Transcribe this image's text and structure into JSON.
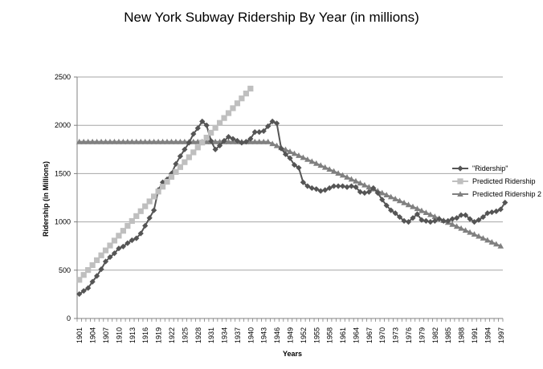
{
  "chart_data": {
    "type": "line",
    "title": "New York Subway Ridership By Year (in millions)",
    "xlabel": "Years",
    "ylabel": "Ridership (in Millions)",
    "ylim": [
      0,
      2500
    ],
    "yticks": [
      "0",
      "500",
      "1000",
      "1500",
      "2000",
      "2500"
    ],
    "xtick_labels": [
      "1901",
      "1904",
      "1907",
      "1910",
      "1913",
      "1916",
      "1919",
      "1922",
      "1925",
      "1928",
      "1931",
      "1934",
      "1937",
      "1940",
      "1943",
      "1946",
      "1949",
      "1952",
      "1955",
      "1958",
      "1961",
      "1964",
      "1967",
      "1970",
      "1973",
      "1976",
      "1979",
      "1982",
      "1985",
      "1988",
      "1991",
      "1994",
      "1997"
    ],
    "grid": true,
    "legend_position": "right",
    "colors": {
      "ridership": "#555555",
      "predicted": "#bfbfbf",
      "predicted2": "#808080",
      "grid": "#a6a6a6",
      "axis": "#808080"
    },
    "series": [
      {
        "name": "\"Ridership\"",
        "key": "ridership",
        "marker": "diamond",
        "x_start": 1901,
        "values": [
          253,
          285,
          315,
          380,
          440,
          510,
          590,
          635,
          675,
          725,
          745,
          780,
          810,
          830,
          880,
          960,
          1040,
          1120,
          1330,
          1410,
          1440,
          1500,
          1600,
          1680,
          1750,
          1820,
          1910,
          1970,
          2040,
          2000,
          1840,
          1750,
          1790,
          1840,
          1880,
          1860,
          1840,
          1820,
          1830,
          1860,
          1930,
          1930,
          1940,
          1990,
          2040,
          2020,
          1760,
          1700,
          1660,
          1590,
          1560,
          1410,
          1370,
          1350,
          1340,
          1320,
          1330,
          1350,
          1370,
          1370,
          1370,
          1360,
          1370,
          1360,
          1310,
          1300,
          1310,
          1350,
          1300,
          1230,
          1170,
          1120,
          1090,
          1050,
          1010,
          1000,
          1040,
          1080,
          1020,
          1010,
          1000,
          1010,
          1030,
          1010,
          1010,
          1030,
          1040,
          1070,
          1070,
          1030,
          1000,
          1020,
          1050,
          1090,
          1100,
          1110,
          1130,
          1200
        ]
      },
      {
        "name": "Predicted Ridership",
        "key": "predicted",
        "marker": "square",
        "x_start": 1901,
        "x_end": 1940,
        "y_start": 400,
        "y_end": 2380
      },
      {
        "name": "Predicted Ridership 2",
        "key": "predicted2",
        "marker": "triangle",
        "x_start": 1901,
        "plateau_end": 1944,
        "plateau_value": 1830,
        "x_end": 1997,
        "y_end": 750
      }
    ]
  }
}
